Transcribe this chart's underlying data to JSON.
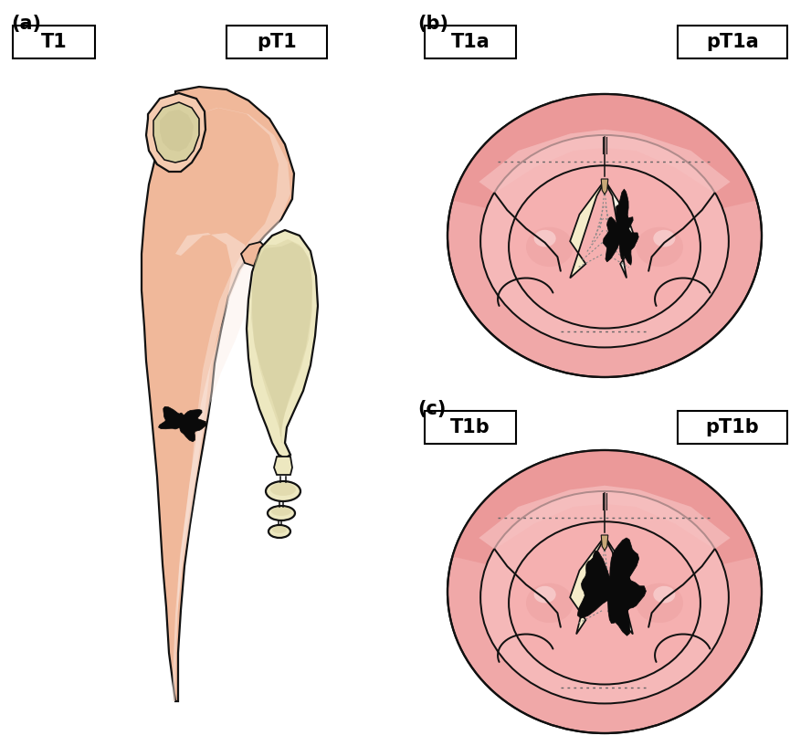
{
  "bg_color": "#ffffff",
  "skin_salmon": "#f0b89a",
  "skin_light": "#f5cbb0",
  "skin_lighter": "#f8ddd0",
  "skin_highlight": "#fceee8",
  "skin_pink": "#f0a0a0",
  "skin_pink_light": "#f5b8b8",
  "skin_pink_medium": "#e89898",
  "skin_pink_inner": "#f0b0b0",
  "cartilage_fill": "#ede8c0",
  "cartilage_inner": "#d8d0a0",
  "cartilage_shadow": "#c8c090",
  "tumor_black": "#0a0a0a",
  "glottis_cream": "#f5ecca",
  "glottis_white": "#faf5e8",
  "outline": "#111111",
  "label_bg": "#ffffff",
  "label_border": "#000000",
  "dotted_color": "#666666",
  "panel_a": "(a)",
  "panel_b": "(b)",
  "panel_c": "(c)",
  "lbl_t1": "T1",
  "lbl_pt1": "pT1",
  "lbl_t1a": "T1a",
  "lbl_pt1a": "pT1a",
  "lbl_t1b": "T1b",
  "lbl_pt1b": "pT1b",
  "fontsize_label": 15,
  "fontsize_panel": 15,
  "lw_main": 1.6
}
